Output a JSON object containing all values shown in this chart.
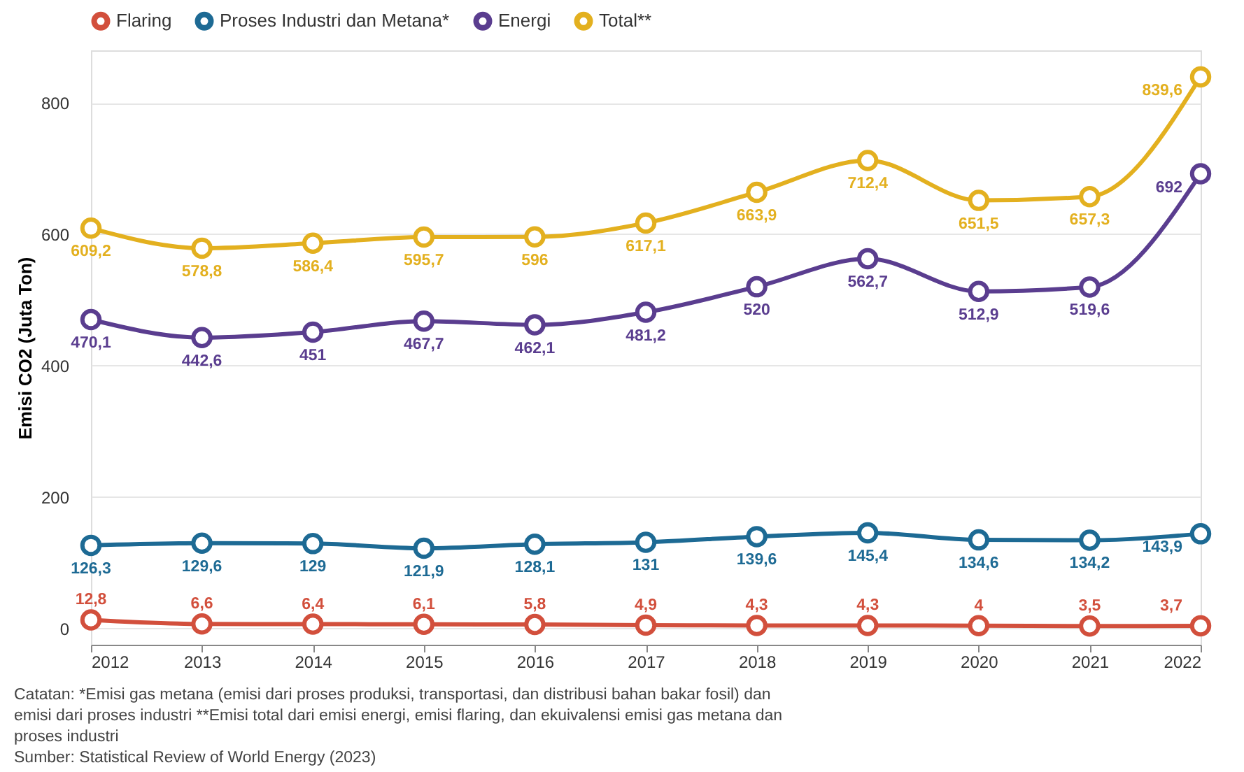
{
  "chart_data": {
    "type": "line",
    "ylabel": "Emisi CO2 (Juta Ton)",
    "x": [
      2012,
      2013,
      2014,
      2015,
      2016,
      2017,
      2018,
      2019,
      2020,
      2021,
      2022
    ],
    "xlim": [
      2012,
      2022
    ],
    "xticks": [
      2012,
      2013,
      2014,
      2015,
      2016,
      2017,
      2018,
      2019,
      2020,
      2021,
      2022
    ],
    "ylim": [
      -25,
      880
    ],
    "yticks": [
      0,
      200,
      400,
      600,
      800
    ],
    "series": [
      {
        "name": "Flaring",
        "color": "#d24f3c",
        "values": [
          12.8,
          6.6,
          6.4,
          6.1,
          5.8,
          4.9,
          4.3,
          4.3,
          4,
          3.5,
          3.7
        ],
        "value_labels": [
          "12,8",
          "6,6",
          "6,4",
          "6,1",
          "5,8",
          "4,9",
          "4,3",
          "4,3",
          "4",
          "3,5",
          "3,7"
        ]
      },
      {
        "name": "Proses Industri dan Metana*",
        "color": "#1d6a94",
        "values": [
          126.3,
          129.6,
          129,
          121.9,
          128.1,
          131,
          139.6,
          145.4,
          134.6,
          134.2,
          143.9
        ],
        "value_labels": [
          "126,3",
          "129,6",
          "129",
          "121,9",
          "128,1",
          "131",
          "139,6",
          "145,4",
          "134,6",
          "134,2",
          "143,9"
        ]
      },
      {
        "name": "Energi",
        "color": "#5a3d8f",
        "values": [
          470.1,
          442.6,
          451,
          467.7,
          462.1,
          481.2,
          520,
          562.7,
          512.9,
          519.6,
          692
        ],
        "value_labels": [
          "470,1",
          "442,6",
          "451",
          "467,7",
          "462,1",
          "481,2",
          "520",
          "562,7",
          "512,9",
          "519,6",
          "692"
        ]
      },
      {
        "name": "Total**",
        "color": "#e3b01f",
        "values": [
          609.2,
          578.8,
          586.4,
          595.7,
          596,
          617.1,
          663.9,
          712.4,
          651.5,
          657.3,
          839.6
        ],
        "value_labels": [
          "609,2",
          "578,8",
          "586,4",
          "595,7",
          "596",
          "617,1",
          "663,9",
          "712,4",
          "651,5",
          "657,3",
          "839,6"
        ]
      }
    ],
    "grid": "y",
    "legend": "top left",
    "marker": "circle",
    "line_style": "solid",
    "annotations": [
      "Catatan: *Emisi gas metana (emisi dari proses produksi, transportasi, dan distribusi bahan bakar fosil) dan emisi dari proses industri **Emisi total dari emisi energi, emisi flaring, dan ekuivalensi emisi gas metana dan proses industri",
      "Sumber: Statistical Review of World Energy (2023)"
    ]
  }
}
